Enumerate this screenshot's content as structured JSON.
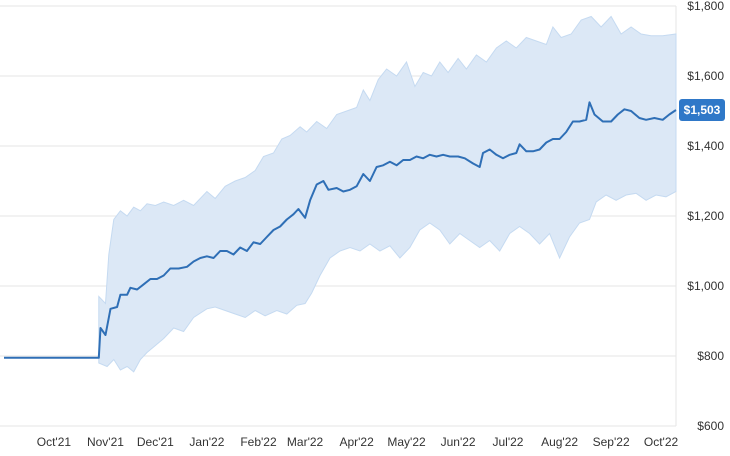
{
  "chart_data": {
    "type": "area",
    "title": "",
    "xlabel": "",
    "ylabel": "",
    "ylim": [
      600,
      1800
    ],
    "grid": true,
    "y_ticks": [
      "$1,800",
      "$1,600",
      "$1,400",
      "$1,200",
      "$1,000",
      "$800",
      "$600"
    ],
    "y_tick_values": [
      1800,
      1600,
      1400,
      1200,
      1000,
      800,
      600
    ],
    "x_ticks": [
      "Oct'21",
      "Nov'21",
      "Dec'21",
      "Jan'22",
      "Feb'22",
      "Mar'22",
      "Apr'22",
      "May'22",
      "Jun'22",
      "Jul'22",
      "Aug'22",
      "Sep'22",
      "Oct'22"
    ],
    "x_start": "2021-09-01",
    "x_end": "2022-10-10",
    "current_value_label": "$1,503",
    "current_value": 1503,
    "colors": {
      "line": "#2f6fb6",
      "band": "#dce8f6",
      "band_edge": "#c5daf1",
      "badge": "#2f78c8",
      "grid": "#e6e6e6"
    },
    "series": [
      {
        "type": "line",
        "points": [
          [
            "2021-09-01",
            795
          ],
          [
            "2021-10-15",
            795
          ],
          [
            "2021-10-28",
            795
          ],
          [
            "2021-10-29",
            880
          ],
          [
            "2021-11-01",
            860
          ],
          [
            "2021-11-04",
            935
          ],
          [
            "2021-11-08",
            940
          ],
          [
            "2021-11-10",
            975
          ],
          [
            "2021-11-14",
            975
          ],
          [
            "2021-11-16",
            995
          ],
          [
            "2021-11-20",
            990
          ],
          [
            "2021-11-24",
            1005
          ],
          [
            "2021-11-28",
            1020
          ],
          [
            "2021-12-02",
            1020
          ],
          [
            "2021-12-06",
            1030
          ],
          [
            "2021-12-10",
            1050
          ],
          [
            "2021-12-15",
            1050
          ],
          [
            "2021-12-20",
            1055
          ],
          [
            "2021-12-24",
            1070
          ],
          [
            "2021-12-28",
            1080
          ],
          [
            "2022-01-01",
            1085
          ],
          [
            "2022-01-05",
            1080
          ],
          [
            "2022-01-09",
            1100
          ],
          [
            "2022-01-13",
            1100
          ],
          [
            "2022-01-17",
            1090
          ],
          [
            "2022-01-21",
            1110
          ],
          [
            "2022-01-25",
            1100
          ],
          [
            "2022-01-29",
            1125
          ],
          [
            "2022-02-02",
            1120
          ],
          [
            "2022-02-06",
            1140
          ],
          [
            "2022-02-10",
            1160
          ],
          [
            "2022-02-14",
            1170
          ],
          [
            "2022-02-18",
            1190
          ],
          [
            "2022-02-22",
            1205
          ],
          [
            "2022-02-25",
            1220
          ],
          [
            "2022-03-01",
            1195
          ],
          [
            "2022-03-04",
            1245
          ],
          [
            "2022-03-08",
            1290
          ],
          [
            "2022-03-12",
            1300
          ],
          [
            "2022-03-15",
            1275
          ],
          [
            "2022-03-20",
            1280
          ],
          [
            "2022-03-24",
            1270
          ],
          [
            "2022-03-28",
            1275
          ],
          [
            "2022-04-01",
            1285
          ],
          [
            "2022-04-05",
            1320
          ],
          [
            "2022-04-09",
            1300
          ],
          [
            "2022-04-13",
            1340
          ],
          [
            "2022-04-17",
            1345
          ],
          [
            "2022-04-21",
            1355
          ],
          [
            "2022-04-25",
            1345
          ],
          [
            "2022-04-29",
            1360
          ],
          [
            "2022-05-03",
            1360
          ],
          [
            "2022-05-07",
            1370
          ],
          [
            "2022-05-11",
            1365
          ],
          [
            "2022-05-15",
            1375
          ],
          [
            "2022-05-19",
            1370
          ],
          [
            "2022-05-23",
            1375
          ],
          [
            "2022-05-27",
            1370
          ],
          [
            "2022-06-01",
            1370
          ],
          [
            "2022-06-05",
            1365
          ],
          [
            "2022-06-10",
            1350
          ],
          [
            "2022-06-14",
            1340
          ],
          [
            "2022-06-16",
            1380
          ],
          [
            "2022-06-20",
            1390
          ],
          [
            "2022-06-24",
            1375
          ],
          [
            "2022-06-28",
            1365
          ],
          [
            "2022-07-02",
            1375
          ],
          [
            "2022-07-06",
            1380
          ],
          [
            "2022-07-08",
            1405
          ],
          [
            "2022-07-12",
            1385
          ],
          [
            "2022-07-16",
            1385
          ],
          [
            "2022-07-20",
            1390
          ],
          [
            "2022-07-24",
            1410
          ],
          [
            "2022-07-28",
            1420
          ],
          [
            "2022-08-01",
            1420
          ],
          [
            "2022-08-05",
            1440
          ],
          [
            "2022-08-09",
            1470
          ],
          [
            "2022-08-13",
            1470
          ],
          [
            "2022-08-17",
            1475
          ],
          [
            "2022-08-19",
            1525
          ],
          [
            "2022-08-22",
            1490
          ],
          [
            "2022-08-27",
            1470
          ],
          [
            "2022-09-01",
            1470
          ],
          [
            "2022-09-05",
            1490
          ],
          [
            "2022-09-09",
            1505
          ],
          [
            "2022-09-13",
            1500
          ],
          [
            "2022-09-18",
            1480
          ],
          [
            "2022-09-22",
            1475
          ],
          [
            "2022-09-27",
            1480
          ],
          [
            "2022-10-02",
            1475
          ],
          [
            "2022-10-06",
            1490
          ],
          [
            "2022-10-10",
            1503
          ]
        ]
      },
      {
        "type": "band",
        "upper": [
          [
            "2021-10-28",
            970
          ],
          [
            "2021-11-01",
            950
          ],
          [
            "2021-11-03",
            1090
          ],
          [
            "2021-11-06",
            1190
          ],
          [
            "2021-11-10",
            1215
          ],
          [
            "2021-11-14",
            1200
          ],
          [
            "2021-11-18",
            1225
          ],
          [
            "2021-11-22",
            1215
          ],
          [
            "2021-11-26",
            1235
          ],
          [
            "2021-12-01",
            1230
          ],
          [
            "2021-12-06",
            1240
          ],
          [
            "2021-12-12",
            1230
          ],
          [
            "2021-12-18",
            1245
          ],
          [
            "2021-12-24",
            1230
          ],
          [
            "2022-01-01",
            1270
          ],
          [
            "2022-01-06",
            1250
          ],
          [
            "2022-01-12",
            1285
          ],
          [
            "2022-01-18",
            1300
          ],
          [
            "2022-01-24",
            1310
          ],
          [
            "2022-01-30",
            1330
          ],
          [
            "2022-02-04",
            1370
          ],
          [
            "2022-02-10",
            1380
          ],
          [
            "2022-02-15",
            1420
          ],
          [
            "2022-02-20",
            1430
          ],
          [
            "2022-02-26",
            1455
          ],
          [
            "2022-03-02",
            1440
          ],
          [
            "2022-03-08",
            1470
          ],
          [
            "2022-03-14",
            1450
          ],
          [
            "2022-03-20",
            1490
          ],
          [
            "2022-03-26",
            1500
          ],
          [
            "2022-04-01",
            1510
          ],
          [
            "2022-04-05",
            1560
          ],
          [
            "2022-04-09",
            1530
          ],
          [
            "2022-04-14",
            1590
          ],
          [
            "2022-04-19",
            1620
          ],
          [
            "2022-04-25",
            1600
          ],
          [
            "2022-05-01",
            1640
          ],
          [
            "2022-05-06",
            1570
          ],
          [
            "2022-05-11",
            1610
          ],
          [
            "2022-05-16",
            1600
          ],
          [
            "2022-05-21",
            1640
          ],
          [
            "2022-05-26",
            1610
          ],
          [
            "2022-06-01",
            1650
          ],
          [
            "2022-06-06",
            1620
          ],
          [
            "2022-06-12",
            1660
          ],
          [
            "2022-06-18",
            1640
          ],
          [
            "2022-06-24",
            1680
          ],
          [
            "2022-06-30",
            1700
          ],
          [
            "2022-07-06",
            1680
          ],
          [
            "2022-07-12",
            1710
          ],
          [
            "2022-07-18",
            1700
          ],
          [
            "2022-07-24",
            1690
          ],
          [
            "2022-07-28",
            1740
          ],
          [
            "2022-08-02",
            1710
          ],
          [
            "2022-08-08",
            1720
          ],
          [
            "2022-08-14",
            1760
          ],
          [
            "2022-08-20",
            1770
          ],
          [
            "2022-08-26",
            1740
          ],
          [
            "2022-09-01",
            1770
          ],
          [
            "2022-09-07",
            1720
          ],
          [
            "2022-09-13",
            1740
          ],
          [
            "2022-09-19",
            1720
          ],
          [
            "2022-09-25",
            1715
          ],
          [
            "2022-10-02",
            1715
          ],
          [
            "2022-10-10",
            1720
          ]
        ],
        "lower": [
          [
            "2021-10-28",
            780
          ],
          [
            "2021-11-02",
            770
          ],
          [
            "2021-11-06",
            790
          ],
          [
            "2021-11-10",
            760
          ],
          [
            "2021-11-14",
            770
          ],
          [
            "2021-11-18",
            755
          ],
          [
            "2021-11-22",
            790
          ],
          [
            "2021-11-26",
            810
          ],
          [
            "2021-12-01",
            830
          ],
          [
            "2021-12-06",
            850
          ],
          [
            "2021-12-12",
            880
          ],
          [
            "2021-12-18",
            870
          ],
          [
            "2021-12-24",
            910
          ],
          [
            "2022-01-01",
            935
          ],
          [
            "2022-01-06",
            940
          ],
          [
            "2022-01-12",
            930
          ],
          [
            "2022-01-18",
            920
          ],
          [
            "2022-01-24",
            910
          ],
          [
            "2022-01-30",
            930
          ],
          [
            "2022-02-05",
            915
          ],
          [
            "2022-02-12",
            930
          ],
          [
            "2022-02-18",
            920
          ],
          [
            "2022-02-24",
            945
          ],
          [
            "2022-03-01",
            950
          ],
          [
            "2022-03-05",
            980
          ],
          [
            "2022-03-10",
            1030
          ],
          [
            "2022-03-16",
            1080
          ],
          [
            "2022-03-22",
            1100
          ],
          [
            "2022-03-28",
            1110
          ],
          [
            "2022-04-03",
            1100
          ],
          [
            "2022-04-09",
            1120
          ],
          [
            "2022-04-15",
            1100
          ],
          [
            "2022-04-21",
            1115
          ],
          [
            "2022-04-27",
            1080
          ],
          [
            "2022-05-03",
            1110
          ],
          [
            "2022-05-09",
            1160
          ],
          [
            "2022-05-15",
            1180
          ],
          [
            "2022-05-21",
            1160
          ],
          [
            "2022-05-27",
            1120
          ],
          [
            "2022-06-02",
            1150
          ],
          [
            "2022-06-08",
            1130
          ],
          [
            "2022-06-14",
            1110
          ],
          [
            "2022-06-20",
            1130
          ],
          [
            "2022-06-26",
            1100
          ],
          [
            "2022-07-02",
            1150
          ],
          [
            "2022-07-08",
            1170
          ],
          [
            "2022-07-14",
            1150
          ],
          [
            "2022-07-20",
            1120
          ],
          [
            "2022-07-26",
            1150
          ],
          [
            "2022-08-01",
            1080
          ],
          [
            "2022-08-07",
            1140
          ],
          [
            "2022-08-13",
            1180
          ],
          [
            "2022-08-19",
            1190
          ],
          [
            "2022-08-23",
            1240
          ],
          [
            "2022-08-29",
            1260
          ],
          [
            "2022-09-04",
            1245
          ],
          [
            "2022-09-10",
            1260
          ],
          [
            "2022-09-16",
            1265
          ],
          [
            "2022-09-22",
            1245
          ],
          [
            "2022-09-28",
            1260
          ],
          [
            "2022-10-04",
            1255
          ],
          [
            "2022-10-10",
            1270
          ]
        ]
      }
    ]
  }
}
